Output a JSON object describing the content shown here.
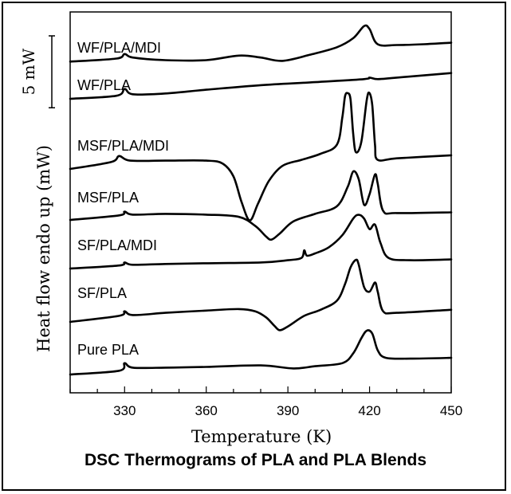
{
  "chart_data": {
    "type": "line",
    "title": "DSC Thermograms of PLA and PLA Blends",
    "xlabel": "Temperature (K)",
    "ylabel": "Heat flow endo up (mW)",
    "xlim": [
      310,
      450
    ],
    "xticks": [
      330,
      360,
      390,
      420,
      450
    ],
    "yticks_shown": false,
    "scale_bar": {
      "label": "5 mW",
      "value_mW": 5
    },
    "curve_unit_mW": 1,
    "series": [
      {
        "name": "WF/PLA/MDI",
        "points": [
          [
            310,
            0.35
          ],
          [
            327,
            0.55
          ],
          [
            330,
            0.85
          ],
          [
            333,
            0.62
          ],
          [
            345,
            0.45
          ],
          [
            360,
            0.45
          ],
          [
            372,
            0.75
          ],
          [
            380,
            0.62
          ],
          [
            388,
            0.4
          ],
          [
            398,
            0.8
          ],
          [
            408,
            1.3
          ],
          [
            414,
            1.9
          ],
          [
            418,
            2.7
          ],
          [
            420,
            2.5
          ],
          [
            423,
            1.5
          ],
          [
            430,
            1.45
          ],
          [
            440,
            1.5
          ],
          [
            450,
            1.6
          ]
        ]
      },
      {
        "name": "WF/PLA",
        "points": [
          [
            310,
            0.0
          ],
          [
            327,
            0.2
          ],
          [
            330,
            0.65
          ],
          [
            333,
            0.3
          ],
          [
            345,
            0.35
          ],
          [
            360,
            0.6
          ],
          [
            380,
            0.9
          ],
          [
            400,
            1.1
          ],
          [
            418,
            1.3
          ],
          [
            420,
            1.4
          ],
          [
            423,
            1.3
          ],
          [
            430,
            1.4
          ],
          [
            450,
            1.7
          ]
        ]
      },
      {
        "name": "MSF/PLA/MDI",
        "points": [
          [
            310,
            0.0
          ],
          [
            325,
            0.45
          ],
          [
            328,
            0.85
          ],
          [
            332,
            0.55
          ],
          [
            345,
            0.55
          ],
          [
            360,
            0.55
          ],
          [
            366,
            0.35
          ],
          [
            370,
            -0.5
          ],
          [
            373,
            -2.2
          ],
          [
            376,
            -3.4
          ],
          [
            379,
            -2.3
          ],
          [
            383,
            -0.8
          ],
          [
            388,
            0.2
          ],
          [
            395,
            0.6
          ],
          [
            402,
            1.0
          ],
          [
            408,
            1.6
          ],
          [
            410,
            3.4
          ],
          [
            411,
            4.8
          ],
          [
            412,
            5.0
          ],
          [
            413,
            4.6
          ],
          [
            414,
            2.3
          ],
          [
            415,
            1.1
          ],
          [
            417,
            1.8
          ],
          [
            419,
            4.6
          ],
          [
            420,
            5.0
          ],
          [
            421,
            4.2
          ],
          [
            422,
            1.6
          ],
          [
            423,
            0.6
          ],
          [
            430,
            0.7
          ],
          [
            450,
            0.9
          ]
        ]
      },
      {
        "name": "MSF/PLA",
        "points": [
          [
            310,
            0.0
          ],
          [
            328,
            0.3
          ],
          [
            330,
            0.55
          ],
          [
            333,
            0.35
          ],
          [
            345,
            0.4
          ],
          [
            360,
            0.35
          ],
          [
            372,
            0.2
          ],
          [
            378,
            -0.4
          ],
          [
            382,
            -1.1
          ],
          [
            384,
            -1.3
          ],
          [
            387,
            -0.9
          ],
          [
            392,
            -0.1
          ],
          [
            400,
            0.4
          ],
          [
            408,
            0.9
          ],
          [
            412,
            2.2
          ],
          [
            414,
            3.2
          ],
          [
            416,
            2.7
          ],
          [
            418,
            1.0
          ],
          [
            420,
            1.7
          ],
          [
            422,
            3.0
          ],
          [
            423,
            2.4
          ],
          [
            425,
            0.6
          ],
          [
            430,
            0.45
          ],
          [
            450,
            0.5
          ]
        ]
      },
      {
        "name": "SF/PLA/MDI",
        "points": [
          [
            310,
            0.0
          ],
          [
            328,
            0.2
          ],
          [
            330,
            0.4
          ],
          [
            333,
            0.25
          ],
          [
            345,
            0.3
          ],
          [
            360,
            0.35
          ],
          [
            380,
            0.4
          ],
          [
            390,
            0.55
          ],
          [
            395,
            0.7
          ],
          [
            396,
            1.2
          ],
          [
            397,
            0.85
          ],
          [
            400,
            1.0
          ],
          [
            405,
            1.4
          ],
          [
            410,
            2.2
          ],
          [
            414,
            3.3
          ],
          [
            416,
            3.55
          ],
          [
            418,
            3.3
          ],
          [
            420,
            2.6
          ],
          [
            422,
            2.9
          ],
          [
            424,
            1.7
          ],
          [
            427,
            0.7
          ],
          [
            435,
            0.55
          ],
          [
            450,
            0.6
          ]
        ]
      },
      {
        "name": "SF/PLA",
        "points": [
          [
            310,
            0.0
          ],
          [
            328,
            0.4
          ],
          [
            330,
            0.7
          ],
          [
            333,
            0.45
          ],
          [
            345,
            0.6
          ],
          [
            360,
            0.75
          ],
          [
            372,
            0.85
          ],
          [
            378,
            0.7
          ],
          [
            382,
            0.3
          ],
          [
            385,
            -0.25
          ],
          [
            387,
            -0.55
          ],
          [
            390,
            -0.3
          ],
          [
            396,
            0.4
          ],
          [
            402,
            0.8
          ],
          [
            408,
            1.4
          ],
          [
            411,
            2.5
          ],
          [
            413,
            3.6
          ],
          [
            415,
            4.1
          ],
          [
            416,
            3.8
          ],
          [
            418,
            2.3
          ],
          [
            420,
            2.0
          ],
          [
            422,
            2.6
          ],
          [
            423,
            2.0
          ],
          [
            425,
            0.7
          ],
          [
            430,
            0.6
          ],
          [
            450,
            0.8
          ]
        ]
      },
      {
        "name": "Pure PLA",
        "points": [
          [
            310,
            0.0
          ],
          [
            328,
            0.25
          ],
          [
            330,
            0.75
          ],
          [
            333,
            0.45
          ],
          [
            345,
            0.45
          ],
          [
            360,
            0.5
          ],
          [
            380,
            0.6
          ],
          [
            392,
            0.4
          ],
          [
            400,
            0.55
          ],
          [
            410,
            0.75
          ],
          [
            414,
            1.4
          ],
          [
            417,
            2.4
          ],
          [
            419,
            2.9
          ],
          [
            421,
            2.7
          ],
          [
            423,
            1.6
          ],
          [
            426,
            1.1
          ],
          [
            435,
            1.05
          ],
          [
            450,
            1.1
          ]
        ]
      }
    ]
  }
}
